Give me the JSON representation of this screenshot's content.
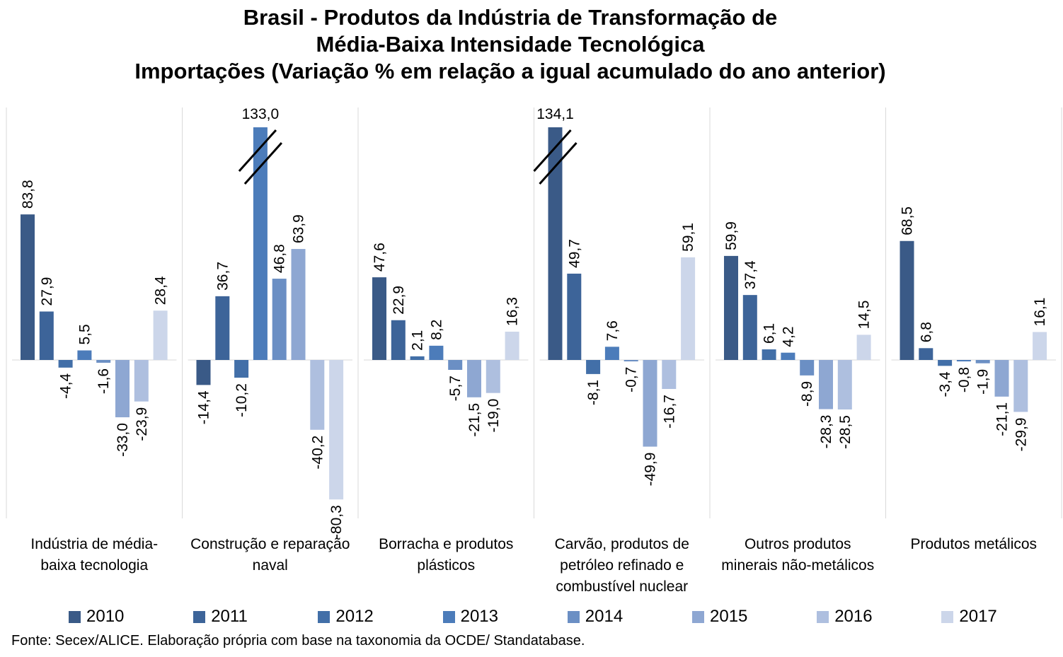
{
  "title_lines": [
    "Brasil - Produtos da Indústria de Transformação de",
    "Média-Baixa Intensidade Tecnológica",
    "Importações (Variação % em relação a igual acumulado do ano anterior)"
  ],
  "source": "Fonte: Secex/ALICE. Elaboração própria com base na taxonomia da OCDE/ Standatabase.",
  "chart_data": {
    "type": "bar",
    "categories": [
      "Indústria de média-baixa tecnologia",
      "Construção e reparação naval",
      "Borracha e produtos plásticos",
      "Carvão, produtos de petróleo refinado e combustível nuclear",
      "Outros produtos minerais não-metálicos",
      "Produtos metálicos"
    ],
    "category_label_lines": [
      [
        "Indústria de média-",
        "baixa tecnologia"
      ],
      [
        "Construção e reparação",
        "naval"
      ],
      [
        "Borracha e produtos",
        "plásticos"
      ],
      [
        "Carvão, produtos de",
        "petróleo refinado e",
        "combustível nuclear"
      ],
      [
        "Outros produtos",
        "minerais não-metálicos"
      ],
      [
        "Produtos metálicos"
      ]
    ],
    "series": [
      {
        "name": "2010",
        "color": "#3a5a87",
        "values": [
          83.8,
          -14.4,
          47.6,
          134.1,
          59.9,
          68.5
        ],
        "labels": [
          "83,8",
          "-14,4",
          "47,6",
          "134,1",
          "59,9",
          "68,5"
        ]
      },
      {
        "name": "2011",
        "color": "#3d6499",
        "values": [
          27.9,
          36.7,
          22.9,
          49.7,
          37.4,
          6.8
        ],
        "labels": [
          "27,9",
          "36,7",
          "22,9",
          "49,7",
          "37,4",
          "6,8"
        ]
      },
      {
        "name": "2012",
        "color": "#426fa8",
        "values": [
          -4.4,
          -10.2,
          2.1,
          -8.1,
          6.1,
          -3.4
        ],
        "labels": [
          "-4,4",
          "-10,2",
          "2,1",
          "-8,1",
          "6,1",
          "-3,4"
        ]
      },
      {
        "name": "2013",
        "color": "#4c7cba",
        "values": [
          5.5,
          133.0,
          8.2,
          7.6,
          4.2,
          -0.8
        ],
        "labels": [
          "5,5",
          "133,0",
          "8,2",
          "7,6",
          "4,2",
          "-0,8"
        ]
      },
      {
        "name": "2014",
        "color": "#6b8fc4",
        "values": [
          -1.6,
          46.8,
          -5.7,
          -0.7,
          -8.9,
          -1.9
        ],
        "labels": [
          "-1,6",
          "46,8",
          "-5,7",
          "-0,7",
          "-8,9",
          "-1,9"
        ]
      },
      {
        "name": "2015",
        "color": "#8ea7d2",
        "values": [
          -33.0,
          63.9,
          -21.5,
          -49.9,
          -28.3,
          -21.1
        ],
        "labels": [
          "-33,0",
          "63,9",
          "-21,5",
          "-49,9",
          "-28,3",
          "-21,1"
        ]
      },
      {
        "name": "2016",
        "color": "#aebfdf",
        "values": [
          -23.9,
          -40.2,
          -19.0,
          -16.7,
          -28.5,
          -29.9
        ],
        "labels": [
          "-23,9",
          "-40,2",
          "-19,0",
          "-16,7",
          "-28,5",
          "-29,9"
        ]
      },
      {
        "name": "2017",
        "color": "#ccd6ea",
        "values": [
          28.4,
          -80.3,
          16.3,
          59.1,
          14.5,
          16.1
        ],
        "labels": [
          "28,4",
          "-80,3",
          "16,3",
          "59,1",
          "14,5",
          "16,1"
        ]
      }
    ],
    "broken_axis_bars": [
      {
        "category": 1,
        "series": 3
      },
      {
        "category": 3,
        "series": 0
      }
    ],
    "grid": false,
    "legend_position": "bottom"
  }
}
